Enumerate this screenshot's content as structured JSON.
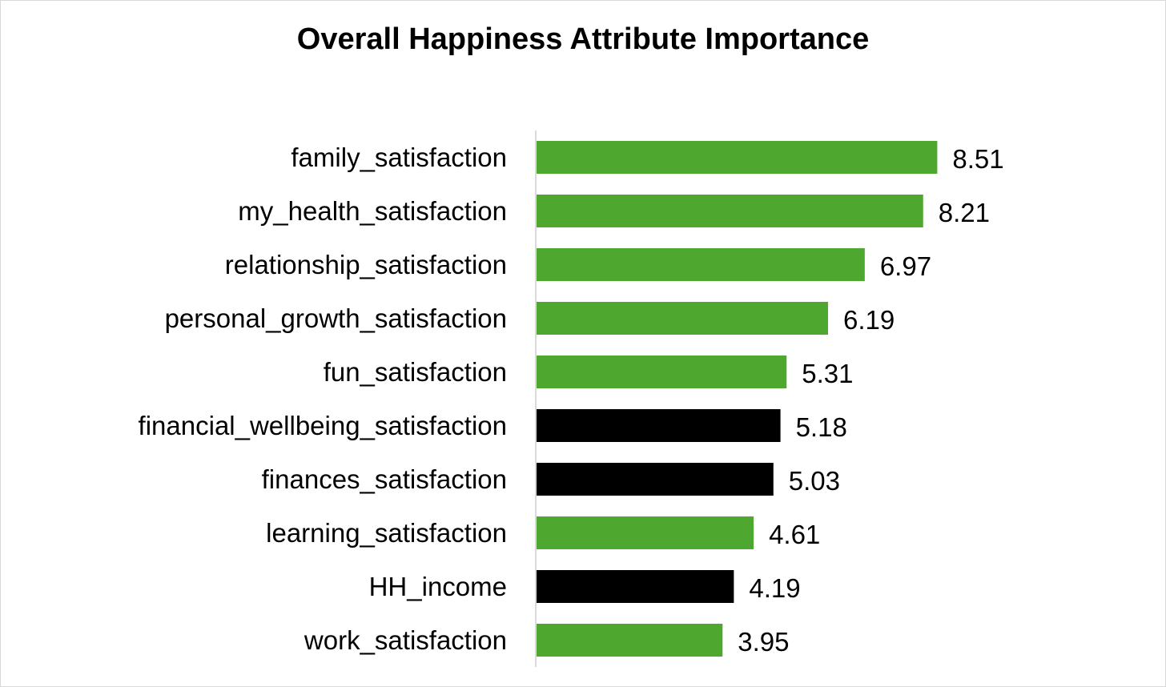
{
  "chart_data": {
    "type": "bar",
    "orientation": "horizontal",
    "title": "Overall Happiness Attribute Importance",
    "xlabel": "",
    "ylabel": "",
    "xlim": [
      0,
      10
    ],
    "grid": false,
    "legend": "none",
    "categories": [
      "family_satisfaction",
      "my_health_satisfaction",
      "relationship_satisfaction",
      "personal_growth_satisfaction",
      "fun_satisfaction",
      "financial_wellbeing_satisfaction",
      "finances_satisfaction",
      "learning_satisfaction",
      "HH_income",
      "work_satisfaction"
    ],
    "values": [
      8.51,
      8.21,
      6.97,
      6.19,
      5.31,
      5.18,
      5.03,
      4.61,
      4.19,
      3.95
    ],
    "value_labels": [
      "8.51",
      "8.21",
      "6.97",
      "6.19",
      "5.31",
      "5.18",
      "5.03",
      "4.61",
      "4.19",
      "3.95"
    ],
    "bar_colors": [
      "#4ea72e",
      "#4ea72e",
      "#4ea72e",
      "#4ea72e",
      "#4ea72e",
      "#000000",
      "#000000",
      "#4ea72e",
      "#000000",
      "#4ea72e"
    ],
    "axis_color": "#d9d9d9"
  }
}
